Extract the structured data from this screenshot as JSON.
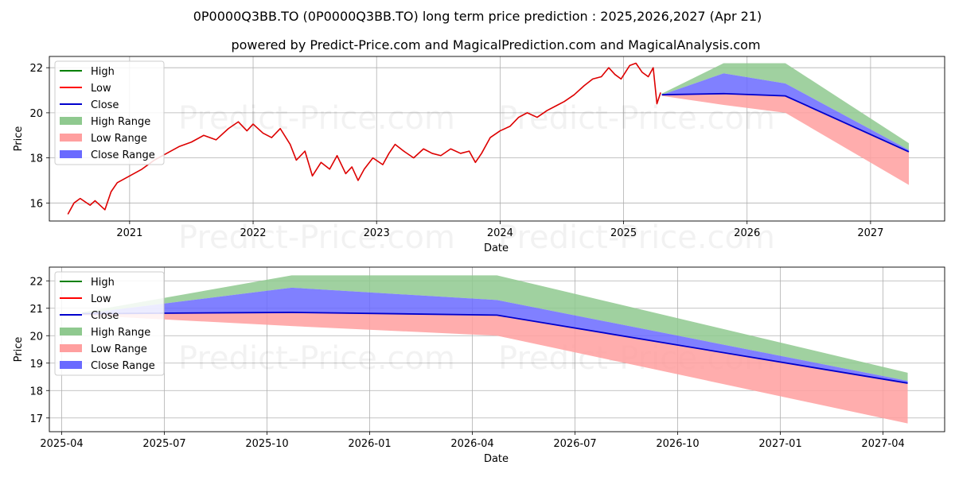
{
  "title": "0P0000Q3BB.TO (0P0000Q3BB.TO) long term price prediction : 2025,2026,2027 (Apr 21)",
  "subtitle": "powered by Predict-Price.com and MagicalPrediction.com and MagicalAnalysis.com",
  "watermark": "Predict-Price.com",
  "colors": {
    "high": "#008000",
    "low": "#ff0000",
    "close": "#0000cd",
    "history": "#dd0000",
    "high_range": "#8fc98f",
    "low_range": "#ff9f9f",
    "close_range": "#6a6aff",
    "grid": "#b0b0b0"
  },
  "legend": [
    "High",
    "Low",
    "Close",
    "High Range",
    "Low Range",
    "Close Range"
  ],
  "chart_data": [
    {
      "type": "line",
      "title": "0P0000Q3BB.TO (0P0000Q3BB.TO) long term price prediction : 2025,2026,2027 (Apr 21)",
      "xlabel": "Date",
      "ylabel": "Price",
      "xlim": [
        2020.35,
        2027.6
      ],
      "ylim": [
        15.2,
        22.5
      ],
      "x_ticks": [
        "2021",
        "2022",
        "2023",
        "2024",
        "2025",
        "2026",
        "2027"
      ],
      "y_ticks": [
        "16",
        "18",
        "20",
        "22"
      ],
      "grid": true,
      "legend_position": "top-left",
      "history": {
        "x": [
          2020.5,
          2020.55,
          2020.6,
          2020.68,
          2020.72,
          2020.8,
          2020.85,
          2020.9,
          2021.0,
          2021.1,
          2021.2,
          2021.3,
          2021.4,
          2021.5,
          2021.6,
          2021.7,
          2021.8,
          2021.88,
          2021.95,
          2022.0,
          2022.08,
          2022.15,
          2022.22,
          2022.3,
          2022.35,
          2022.42,
          2022.48,
          2022.55,
          2022.62,
          2022.68,
          2022.75,
          2022.8,
          2022.85,
          2022.9,
          2022.97,
          2023.05,
          2023.1,
          2023.15,
          2023.22,
          2023.3,
          2023.38,
          2023.45,
          2023.52,
          2023.6,
          2023.68,
          2023.75,
          2023.8,
          2023.85,
          2023.92,
          2024.0,
          2024.08,
          2024.15,
          2024.22,
          2024.3,
          2024.38,
          2024.45,
          2024.52,
          2024.6,
          2024.68,
          2024.75,
          2024.82,
          2024.88,
          2024.93,
          2024.98,
          2025.05,
          2025.1,
          2025.15,
          2025.2,
          2025.24,
          2025.27,
          2025.3
        ],
        "values": [
          15.5,
          16.0,
          16.2,
          15.9,
          16.1,
          15.7,
          16.5,
          16.9,
          17.2,
          17.5,
          17.9,
          18.2,
          18.5,
          18.7,
          19.0,
          18.8,
          19.3,
          19.6,
          19.2,
          19.5,
          19.1,
          18.9,
          19.3,
          18.6,
          17.9,
          18.3,
          17.2,
          17.8,
          17.5,
          18.1,
          17.3,
          17.6,
          17.0,
          17.5,
          18.0,
          17.7,
          18.2,
          18.6,
          18.3,
          18.0,
          18.4,
          18.2,
          18.1,
          18.4,
          18.2,
          18.3,
          17.8,
          18.2,
          18.9,
          19.2,
          19.4,
          19.8,
          20.0,
          19.8,
          20.1,
          20.3,
          20.5,
          20.8,
          21.2,
          21.5,
          21.6,
          22.0,
          21.7,
          21.5,
          22.1,
          22.2,
          21.8,
          21.6,
          22.0,
          20.4,
          20.9
        ]
      },
      "series": [
        {
          "name": "High",
          "x": [
            2025.31,
            2025.81,
            2026.31,
            2027.31
          ],
          "values": [
            20.85,
            22.2,
            22.2,
            18.65
          ]
        },
        {
          "name": "Low",
          "x": [
            2025.31,
            2025.81,
            2026.31,
            2027.31
          ],
          "values": [
            20.75,
            20.35,
            20.0,
            16.8
          ]
        },
        {
          "name": "Close",
          "x": [
            2025.31,
            2025.81,
            2026.31,
            2027.31
          ],
          "values": [
            20.8,
            20.85,
            20.75,
            18.27
          ]
        }
      ],
      "ranges": {
        "high_range": {
          "x": [
            2025.31,
            2025.81,
            2026.31,
            2027.31
          ],
          "upper": [
            20.85,
            22.2,
            22.2,
            18.65
          ],
          "lower": [
            20.8,
            21.75,
            21.3,
            18.35
          ]
        },
        "low_range": {
          "x": [
            2025.31,
            2025.81,
            2026.31,
            2027.31
          ],
          "upper": [
            20.8,
            20.85,
            20.75,
            18.27
          ],
          "lower": [
            20.75,
            20.35,
            20.0,
            16.8
          ]
        },
        "close_range": {
          "x": [
            2025.31,
            2025.81,
            2026.31,
            2027.31
          ],
          "upper": [
            20.8,
            21.75,
            21.3,
            18.35
          ],
          "lower": [
            20.8,
            20.85,
            20.75,
            18.27
          ]
        }
      }
    },
    {
      "type": "line",
      "xlabel": "Date",
      "ylabel": "Price",
      "xlim": [
        2025.22,
        2027.4
      ],
      "ylim": [
        16.5,
        22.5
      ],
      "x_ticks": [
        "2025-04",
        "2025-07",
        "2025-10",
        "2026-01",
        "2026-04",
        "2026-07",
        "2026-10",
        "2027-01",
        "2027-04"
      ],
      "y_ticks": [
        "17",
        "18",
        "19",
        "20",
        "21",
        "22"
      ],
      "grid": true,
      "legend_position": "top-left",
      "series": [
        {
          "name": "High",
          "x": [
            2025.3,
            2025.81,
            2026.31,
            2027.31
          ],
          "values": [
            20.85,
            22.2,
            22.2,
            18.65
          ]
        },
        {
          "name": "Low",
          "x": [
            2025.3,
            2025.81,
            2026.31,
            2027.31
          ],
          "values": [
            20.75,
            20.35,
            20.0,
            16.8
          ]
        },
        {
          "name": "Close",
          "x": [
            2025.3,
            2025.81,
            2026.31,
            2027.31
          ],
          "values": [
            20.8,
            20.85,
            20.75,
            18.27
          ]
        }
      ],
      "ranges": {
        "high_range": {
          "x": [
            2025.3,
            2025.81,
            2026.31,
            2027.31
          ],
          "upper": [
            20.85,
            22.2,
            22.2,
            18.65
          ],
          "lower": [
            20.8,
            21.75,
            21.3,
            18.35
          ]
        },
        "low_range": {
          "x": [
            2025.3,
            2025.81,
            2026.31,
            2027.31
          ],
          "upper": [
            20.8,
            20.85,
            20.75,
            18.27
          ],
          "lower": [
            20.75,
            20.35,
            20.0,
            16.8
          ]
        },
        "close_range": {
          "x": [
            2025.3,
            2025.81,
            2026.31,
            2027.31
          ],
          "upper": [
            20.8,
            21.75,
            21.3,
            18.35
          ],
          "lower": [
            20.8,
            20.85,
            20.75,
            18.27
          ]
        }
      }
    }
  ]
}
